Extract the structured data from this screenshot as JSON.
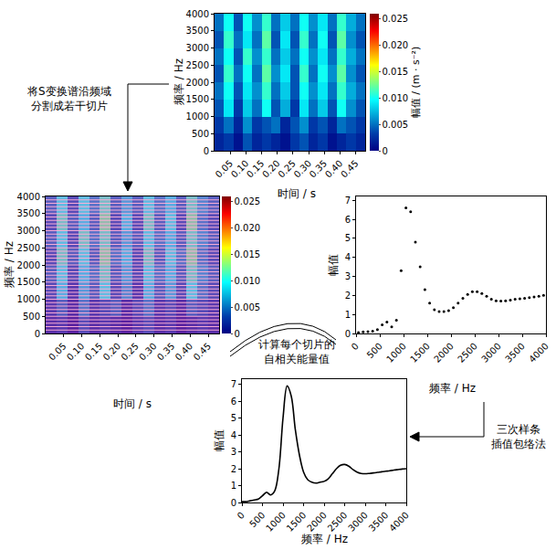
{
  "chart_data": [
    {
      "type": "heatmap",
      "x": [
        0.015,
        0.045,
        0.075,
        0.105,
        0.135,
        0.165,
        0.195,
        0.225,
        0.255,
        0.285,
        0.315,
        0.345,
        0.375,
        0.405,
        0.435,
        0.465
      ],
      "y": [
        250,
        750,
        1250,
        1750,
        2250,
        2750,
        3250,
        3750
      ],
      "cells": [
        [
          0.002,
          0.003,
          0.001,
          0.004,
          0.002,
          0.003,
          0.002,
          0.001,
          0.003,
          0.004,
          0.002,
          0.003,
          0.001,
          0.002,
          0.003,
          0.002
        ],
        [
          0.003,
          0.005,
          0.002,
          0.006,
          0.003,
          0.004,
          0.005,
          0.002,
          0.004,
          0.006,
          0.003,
          0.004,
          0.002,
          0.005,
          0.004,
          0.003
        ],
        [
          0.004,
          0.009,
          0.003,
          0.008,
          0.005,
          0.01,
          0.004,
          0.007,
          0.003,
          0.009,
          0.005,
          0.008,
          0.004,
          0.01,
          0.006,
          0.004
        ],
        [
          0.005,
          0.01,
          0.004,
          0.009,
          0.006,
          0.011,
          0.005,
          0.008,
          0.004,
          0.01,
          0.006,
          0.009,
          0.005,
          0.011,
          0.007,
          0.005
        ],
        [
          0.004,
          0.011,
          0.005,
          0.01,
          0.005,
          0.012,
          0.006,
          0.009,
          0.004,
          0.011,
          0.005,
          0.01,
          0.006,
          0.012,
          0.006,
          0.004
        ],
        [
          0.005,
          0.01,
          0.004,
          0.011,
          0.006,
          0.011,
          0.005,
          0.008,
          0.005,
          0.01,
          0.006,
          0.009,
          0.005,
          0.011,
          0.007,
          0.005
        ],
        [
          0.004,
          0.011,
          0.005,
          0.009,
          0.005,
          0.012,
          0.004,
          0.009,
          0.004,
          0.011,
          0.005,
          0.01,
          0.004,
          0.012,
          0.006,
          0.004
        ],
        [
          0.005,
          0.01,
          0.004,
          0.01,
          0.006,
          0.011,
          0.005,
          0.008,
          0.005,
          0.01,
          0.006,
          0.009,
          0.005,
          0.011,
          0.007,
          0.005
        ]
      ],
      "color": "Jet",
      "color_range": [
        0,
        0.026
      ],
      "color_ticks": [
        0,
        0.005,
        {
          "value": 0.01,
          "label": "0.010"
        },
        0.015,
        {
          "value": 0.02,
          "label": "0.020"
        },
        0.025
      ],
      "colorbar_title": "幅值 / (m · s⁻²)",
      "x_label": "时间 / s",
      "y_label": "频率 / Hz",
      "xlim": [
        0,
        0.48
      ],
      "ylim": [
        0,
        4000
      ],
      "xticks": [
        0.05,
        {
          "value": 0.1,
          "label": "0.10"
        },
        0.15,
        {
          "value": 0.2,
          "label": "0.20"
        },
        0.25,
        {
          "value": 0.3,
          "label": "0.30"
        },
        0.35,
        {
          "value": 0.4,
          "label": "0.40"
        },
        0.45
      ],
      "yticks": [
        0,
        500,
        1000,
        1500,
        2000,
        2500,
        3000,
        3500,
        4000
      ]
    },
    {
      "type": "heatmap",
      "x": [
        0.015,
        0.045,
        0.075,
        0.105,
        0.135,
        0.165,
        0.195,
        0.225,
        0.255,
        0.285,
        0.315,
        0.345,
        0.375,
        0.405,
        0.435,
        0.465
      ],
      "y": [
        250,
        750,
        1250,
        1750,
        2250,
        2750,
        3250,
        3750
      ],
      "cells": [
        [
          0.002,
          0.003,
          0.001,
          0.004,
          0.002,
          0.003,
          0.002,
          0.001,
          0.003,
          0.004,
          0.002,
          0.003,
          0.001,
          0.002,
          0.003,
          0.002
        ],
        [
          0.003,
          0.005,
          0.002,
          0.006,
          0.003,
          0.004,
          0.005,
          0.002,
          0.004,
          0.006,
          0.003,
          0.004,
          0.002,
          0.005,
          0.004,
          0.003
        ],
        [
          0.004,
          0.009,
          0.003,
          0.008,
          0.005,
          0.01,
          0.004,
          0.007,
          0.003,
          0.009,
          0.005,
          0.008,
          0.004,
          0.01,
          0.006,
          0.004
        ],
        [
          0.005,
          0.01,
          0.004,
          0.009,
          0.006,
          0.011,
          0.005,
          0.008,
          0.004,
          0.01,
          0.006,
          0.009,
          0.005,
          0.011,
          0.007,
          0.005
        ],
        [
          0.004,
          0.011,
          0.005,
          0.01,
          0.005,
          0.012,
          0.006,
          0.009,
          0.004,
          0.011,
          0.005,
          0.01,
          0.006,
          0.012,
          0.006,
          0.004
        ],
        [
          0.005,
          0.01,
          0.004,
          0.011,
          0.006,
          0.011,
          0.005,
          0.008,
          0.005,
          0.01,
          0.006,
          0.009,
          0.005,
          0.011,
          0.007,
          0.005
        ],
        [
          0.004,
          0.011,
          0.005,
          0.009,
          0.005,
          0.012,
          0.004,
          0.009,
          0.004,
          0.011,
          0.005,
          0.01,
          0.004,
          0.012,
          0.006,
          0.004
        ],
        [
          0.005,
          0.01,
          0.004,
          0.01,
          0.006,
          0.011,
          0.005,
          0.008,
          0.005,
          0.01,
          0.006,
          0.009,
          0.005,
          0.011,
          0.007,
          0.005
        ]
      ],
      "color": "Jet",
      "color_range": [
        0,
        0.026
      ],
      "color_ticks": [
        0,
        0.005,
        {
          "value": 0.01,
          "label": "0.010"
        },
        0.015,
        {
          "value": 0.02,
          "label": "0.020"
        },
        0.025
      ],
      "x_label": "时间 / s",
      "y_label": "频率 / Hz",
      "xlim": [
        0,
        0.48
      ],
      "ylim": [
        0,
        4000
      ],
      "xticks": [
        0.05,
        {
          "value": 0.1,
          "label": "0.10"
        },
        0.15,
        {
          "value": 0.2,
          "label": "0.20"
        },
        0.25,
        {
          "value": 0.3,
          "label": "0.30"
        },
        0.35,
        {
          "value": 0.4,
          "label": "0.40"
        },
        0.45
      ],
      "yticks": [
        0,
        500,
        1000,
        1500,
        2000,
        2500,
        3000,
        3500,
        4000
      ]
    },
    {
      "type": "scatter",
      "x": [
        50,
        150,
        250,
        350,
        450,
        550,
        650,
        750,
        850,
        950,
        1050,
        1150,
        1250,
        1350,
        1450,
        1550,
        1650,
        1750,
        1850,
        1950,
        2050,
        2150,
        2250,
        2350,
        2450,
        2550,
        2650,
        2750,
        2850,
        2950,
        3050,
        3150,
        3250,
        3350,
        3450,
        3550,
        3650,
        3750,
        3850,
        3950
      ],
      "values": [
        0.05,
        0.08,
        0.1,
        0.12,
        0.2,
        0.45,
        0.6,
        0.35,
        0.7,
        3.3,
        6.6,
        6.4,
        4.8,
        3.5,
        2.3,
        1.6,
        1.25,
        1.15,
        1.15,
        1.2,
        1.35,
        1.6,
        1.85,
        2.05,
        2.2,
        2.2,
        2.1,
        1.95,
        1.8,
        1.72,
        1.7,
        1.72,
        1.75,
        1.8,
        1.82,
        1.85,
        1.88,
        1.92,
        1.95,
        2.0
      ],
      "color": "#000000",
      "marker": "dot",
      "x_label": "频率 / Hz",
      "y_label": "幅值",
      "xlim": [
        0,
        4000
      ],
      "ylim": [
        0,
        7.2
      ],
      "xticks": [
        0,
        500,
        1000,
        1500,
        2000,
        2500,
        3000,
        3500,
        4000
      ],
      "yticks": [
        0,
        1,
        2,
        3,
        4,
        5,
        6,
        7
      ]
    },
    {
      "type": "line",
      "x": [
        0,
        100,
        200,
        300,
        400,
        500,
        600,
        700,
        800,
        900,
        1000,
        1100,
        1200,
        1300,
        1400,
        1500,
        1600,
        1700,
        1800,
        1900,
        2000,
        2100,
        2200,
        2300,
        2400,
        2500,
        2600,
        2700,
        2800,
        2900,
        3000,
        3100,
        3200,
        3300,
        3400,
        3500,
        3600,
        3700,
        3800,
        3900,
        4000
      ],
      "values": [
        0.05,
        0.05,
        0.1,
        0.15,
        0.2,
        0.4,
        0.6,
        0.45,
        0.7,
        2.0,
        5.0,
        6.9,
        6.3,
        4.3,
        2.8,
        1.8,
        1.35,
        1.2,
        1.15,
        1.2,
        1.25,
        1.4,
        1.7,
        2.0,
        2.2,
        2.25,
        2.15,
        1.95,
        1.8,
        1.72,
        1.7,
        1.72,
        1.75,
        1.78,
        1.82,
        1.85,
        1.88,
        1.92,
        1.95,
        1.98,
        2.0
      ],
      "color": "#000000",
      "line_style": "solid",
      "x_label": "频率 / Hz",
      "y_label": "幅值",
      "xlim": [
        0,
        4000
      ],
      "ylim": [
        0,
        7.3
      ],
      "xticks": [
        0,
        500,
        1000,
        1500,
        2000,
        2500,
        3000,
        3500,
        4000
      ],
      "yticks": [
        0,
        1,
        2,
        3,
        4,
        5,
        6,
        7
      ]
    }
  ],
  "diagram": {
    "steps": [
      [
        "将S变换谱沿频域",
        "分割成若干切片"
      ],
      [
        "计算每个切片的",
        "自相关能量值"
      ],
      [
        "三次样条",
        "插值包络法"
      ]
    ]
  }
}
